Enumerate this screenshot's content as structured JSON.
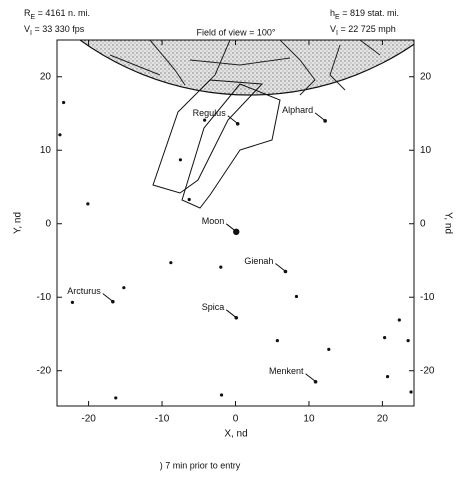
{
  "chart_data": {
    "type": "scatter",
    "title": "Field of view = 100°",
    "header_left": [
      {
        "symbol": "R",
        "subscript": "E",
        "text": " = 4161 n. mi."
      },
      {
        "symbol": "V",
        "subscript": "I",
        "text": " = 33 330 fps"
      }
    ],
    "header_right": [
      {
        "symbol": "h",
        "subscript": "E",
        "text": " = 819 stat. mi."
      },
      {
        "symbol": "V",
        "subscript": "I",
        "text": " = 22 725 mph"
      }
    ],
    "caption": ") 7 min prior to entry",
    "x_label": "X, nd",
    "y_label": "Y, nd",
    "xlim": [
      -24.3,
      24.3
    ],
    "ylim": [
      -24.8,
      25
    ],
    "xticks": [
      -20,
      -10,
      0,
      10,
      20
    ],
    "yticks": [
      -20,
      -10,
      0,
      10,
      20
    ],
    "color": "#111",
    "x": [
      -23.4,
      -23.9,
      -20.1,
      -7.5,
      -4.2,
      -8.8,
      -2.0,
      -15.2,
      -22.2,
      8.3,
      5.7,
      12.7,
      20.3,
      22.3,
      20.7,
      23.5,
      23.9,
      -16.3,
      -1.9,
      -6.3
    ],
    "values": [
      16.5,
      12.1,
      2.7,
      8.7,
      14.1,
      -5.3,
      -5.9,
      -8.7,
      -10.7,
      -9.9,
      -15.9,
      -17.1,
      -15.5,
      -13.1,
      -20.8,
      -15.9,
      -22.9,
      -23.7,
      -23.3,
      3.3
    ],
    "labels": [
      {
        "text": "Alphard",
        "x": 12.2,
        "y": 14.0
      },
      {
        "text": "Regulus",
        "x": 0.3,
        "y": 13.6
      },
      {
        "text": "Moon",
        "x": 0.1,
        "y": -1.1,
        "marker": "large"
      },
      {
        "text": "Gienah",
        "x": 6.8,
        "y": -6.5
      },
      {
        "text": "Arcturus",
        "x": -16.7,
        "y": -10.6
      },
      {
        "text": "Spica",
        "x": 0.1,
        "y": -12.8
      },
      {
        "text": "Menkent",
        "x": 10.9,
        "y": -21.5
      }
    ]
  }
}
